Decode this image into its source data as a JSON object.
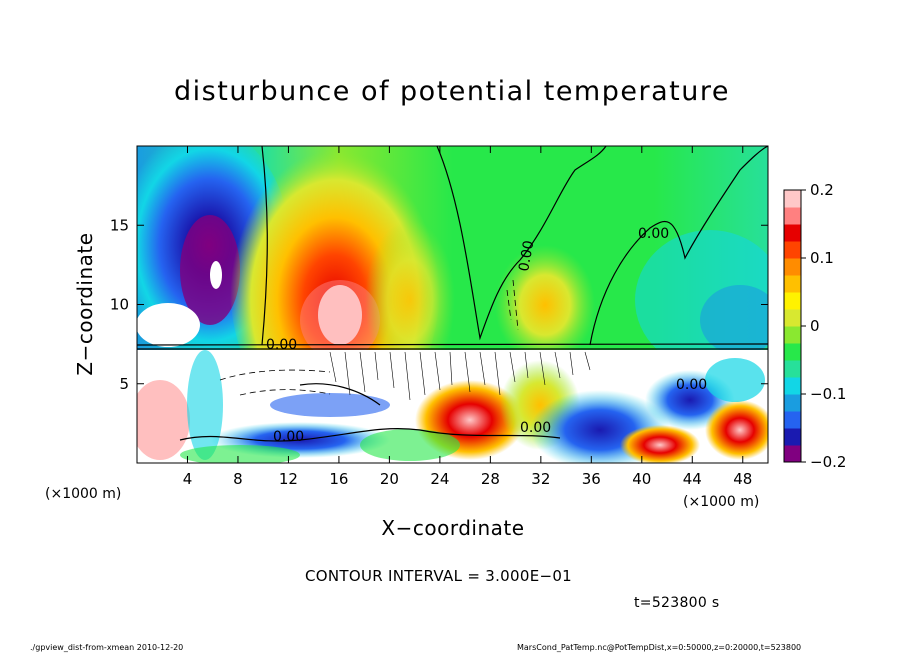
{
  "chart_data": {
    "type": "heatmap",
    "title": "disturbunce of potential temperature",
    "xlabel": "X−coordinate",
    "ylabel": "Z−coordinate",
    "x_unit": "(×1000 m)",
    "y_unit": "(×1000 m)",
    "x_range": [
      0,
      50
    ],
    "y_range": [
      0,
      20
    ],
    "x_ticks": [
      4,
      8,
      12,
      16,
      20,
      24,
      28,
      32,
      36,
      40,
      44,
      48
    ],
    "y_ticks": [
      5,
      10,
      15
    ],
    "colorbar": {
      "range": [
        -0.2,
        0.2
      ],
      "tick_labels": [
        "0.2",
        "0.1",
        "0",
        "−0.1",
        "−0.2"
      ],
      "tick_values": [
        0.2,
        0.1,
        0,
        -0.1,
        -0.2
      ],
      "colors": [
        "#800080",
        "#1a1ab0",
        "#2563f0",
        "#1a9de0",
        "#12d6e6",
        "#27e09a",
        "#27e84a",
        "#8ae830",
        "#d8e830",
        "#fff200",
        "#ffc000",
        "#ff8c00",
        "#ff4400",
        "#e60000",
        "#ff8080",
        "#ffc8c8"
      ]
    },
    "contour_labels": [
      "0.00",
      "0.00",
      "0.00",
      "0.00",
      "0.00",
      "0.00"
    ],
    "contour_interval_text": "CONTOUR INTERVAL = 3.000E−01",
    "time_text": "t=523800 s"
  },
  "footer": {
    "left": "./gpview_dist-from-xmean  2010-12-20",
    "right": "MarsCond_PatTemp.nc@PotTempDist,x=0:50000,z=0:20000,t=523800"
  },
  "colors": {
    "warm_core": "#e60000",
    "cold_core": "#1a1ab0",
    "neutral": "#27e84a"
  }
}
